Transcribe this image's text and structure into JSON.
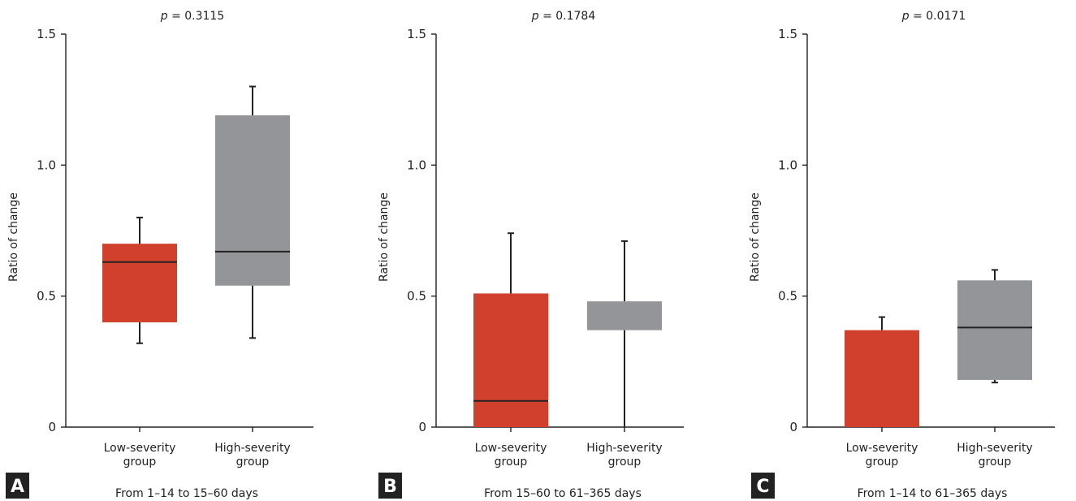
{
  "chart_data": [
    {
      "type": "box",
      "panel_label": "A",
      "title_prefix": "p",
      "title_value": "= 0.3115",
      "ylabel": "Ratio of change",
      "xlabel": "From 1–14 to 15–60 days",
      "ylim": [
        0,
        1.5
      ],
      "yticks": [
        0,
        0.5,
        1.0,
        1.5
      ],
      "ytick_labels": [
        "0",
        "0.5",
        "1.0",
        "1.5"
      ],
      "categories": [
        [
          "Low-severity",
          "group"
        ],
        [
          "High-severity",
          "group"
        ]
      ],
      "boxes": [
        {
          "whisker_low": 0.32,
          "q1": 0.4,
          "median": 0.63,
          "q3": 0.7,
          "whisker_high": 0.8,
          "color": "#d0402c"
        },
        {
          "whisker_low": 0.34,
          "q1": 0.54,
          "median": 0.67,
          "q3": 1.19,
          "whisker_high": 1.3,
          "color": "#939598"
        }
      ]
    },
    {
      "type": "box",
      "panel_label": "B",
      "title_prefix": "p",
      "title_value": "= 0.1784",
      "ylabel": "Ratio of change",
      "xlabel": "From 15–60 to 61–365 days",
      "ylim": [
        0,
        1.5
      ],
      "yticks": [
        0,
        0.5,
        1.0,
        1.5
      ],
      "ytick_labels": [
        "0",
        "0.5",
        "1.0",
        "1.5"
      ],
      "categories": [
        [
          "Low-severity",
          "group"
        ],
        [
          "High-severity",
          "group"
        ]
      ],
      "boxes": [
        {
          "whisker_low": 0.0,
          "q1": 0.0,
          "median": 0.1,
          "q3": 0.51,
          "whisker_high": 0.74,
          "color": "#d0402c"
        },
        {
          "whisker_low": 0.0,
          "q1": 0.37,
          "median": null,
          "q3": 0.48,
          "whisker_high": 0.71,
          "color": "#939598"
        }
      ]
    },
    {
      "type": "box",
      "panel_label": "C",
      "title_prefix": "p",
      "title_value": "= 0.0171",
      "ylabel": "Ratio of change",
      "xlabel": "From 1–14 to 61–365 days",
      "ylim": [
        0,
        1.5
      ],
      "yticks": [
        0,
        0.5,
        1.0,
        1.5
      ],
      "ytick_labels": [
        "0",
        "0.5",
        "1.0",
        "1.5"
      ],
      "categories": [
        [
          "Low-severity",
          "group"
        ],
        [
          "High-severity",
          "group"
        ]
      ],
      "boxes": [
        {
          "whisker_low": 0.0,
          "q1": 0.0,
          "median": null,
          "q3": 0.37,
          "whisker_high": 0.42,
          "color": "#d0402c"
        },
        {
          "whisker_low": 0.17,
          "q1": 0.18,
          "median": 0.38,
          "q3": 0.56,
          "whisker_high": 0.6,
          "color": "#939598"
        }
      ]
    }
  ]
}
